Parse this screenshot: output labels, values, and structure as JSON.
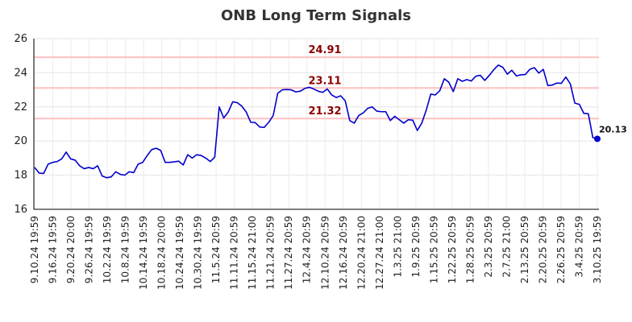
{
  "chart_data": {
    "type": "line",
    "title": "ONB Long Term Signals",
    "xlabel": "",
    "ylabel": "",
    "ylim": [
      16,
      26
    ],
    "y_ticks": [
      "16",
      "18",
      "20",
      "22",
      "24",
      "26"
    ],
    "grid": true,
    "x_tick_labels": [
      "9.10.24 19:59",
      "9.16.24 19:59",
      "9.20.24 20:00",
      "9.26.24 19:59",
      "10.2.24 19:59",
      "10.8.24 19:59",
      "10.14.24 19:59",
      "10.18.24 20:00",
      "10.24.24 19:59",
      "10.30.24 19:59",
      "11.5.24 20:59",
      "11.11.24 20:59",
      "11.15.24 21:00",
      "11.21.24 20:59",
      "11.27.24 20:59",
      "12.4.24 20:59",
      "12.10.24 20:59",
      "12.16.24 20:59",
      "12.20.24 21:00",
      "12.27.24 21:00",
      "1.3.25 21:00",
      "1.9.25 20:59",
      "1.15.25 20:59",
      "1.22.25 20:59",
      "1.28.25 20:59",
      "2.3.25 20:59",
      "2.7.25 21:00",
      "2.13.25 20:59",
      "2.20.25 20:59",
      "2.26.25 20:59",
      "3.4.25 20:59",
      "3.10.25 19:59"
    ],
    "series": [
      {
        "name": "",
        "color": "#0000cc",
        "values": [
          18.45,
          18.12,
          18.1,
          18.65,
          18.75,
          18.8,
          18.95,
          19.35,
          18.95,
          18.88,
          18.55,
          18.38,
          18.45,
          18.38,
          18.55,
          17.95,
          17.85,
          17.9,
          18.2,
          18.05,
          18.0,
          18.2,
          18.15,
          18.65,
          18.75,
          19.15,
          19.5,
          19.58,
          19.45,
          18.75,
          18.75,
          18.78,
          18.82,
          18.6,
          19.2,
          19.0,
          19.2,
          19.15,
          19.0,
          18.8,
          19.05,
          22.0,
          21.35,
          21.7,
          22.3,
          22.25,
          22.05,
          21.7,
          21.1,
          21.08,
          20.82,
          20.8,
          21.1,
          21.5,
          22.8,
          23.0,
          23.02,
          23.0,
          22.88,
          22.92,
          23.08,
          23.15,
          23.05,
          22.92,
          22.85,
          23.05,
          22.7,
          22.55,
          22.65,
          22.35,
          21.2,
          21.05,
          21.5,
          21.65,
          21.92,
          22.0,
          21.75,
          21.72,
          21.72,
          21.2,
          21.45,
          21.25,
          21.05,
          21.25,
          21.22,
          20.62,
          21.05,
          21.82,
          22.75,
          22.7,
          22.95,
          23.65,
          23.45,
          22.9,
          23.65,
          23.5,
          23.6,
          23.52,
          23.8,
          23.85,
          23.55,
          23.85,
          24.18,
          24.45,
          24.32,
          23.92,
          24.15,
          23.82,
          23.88,
          23.9,
          24.2,
          24.3,
          23.98,
          24.2,
          23.25,
          23.28,
          23.4,
          23.38,
          23.75,
          23.35,
          22.22,
          22.15,
          21.62,
          21.6,
          20.2,
          20.13
        ]
      }
    ],
    "reference_lines": [
      {
        "value": 24.91,
        "label": "24.91",
        "color": "#ffc0c0"
      },
      {
        "value": 23.11,
        "label": "23.11",
        "color": "#ffc0c0"
      },
      {
        "value": 21.32,
        "label": "21.32",
        "color": "#ffc0c0"
      }
    ],
    "last_point": {
      "value": 20.13,
      "label": "20.13",
      "color": "#0000cc"
    },
    "legend": "none"
  }
}
